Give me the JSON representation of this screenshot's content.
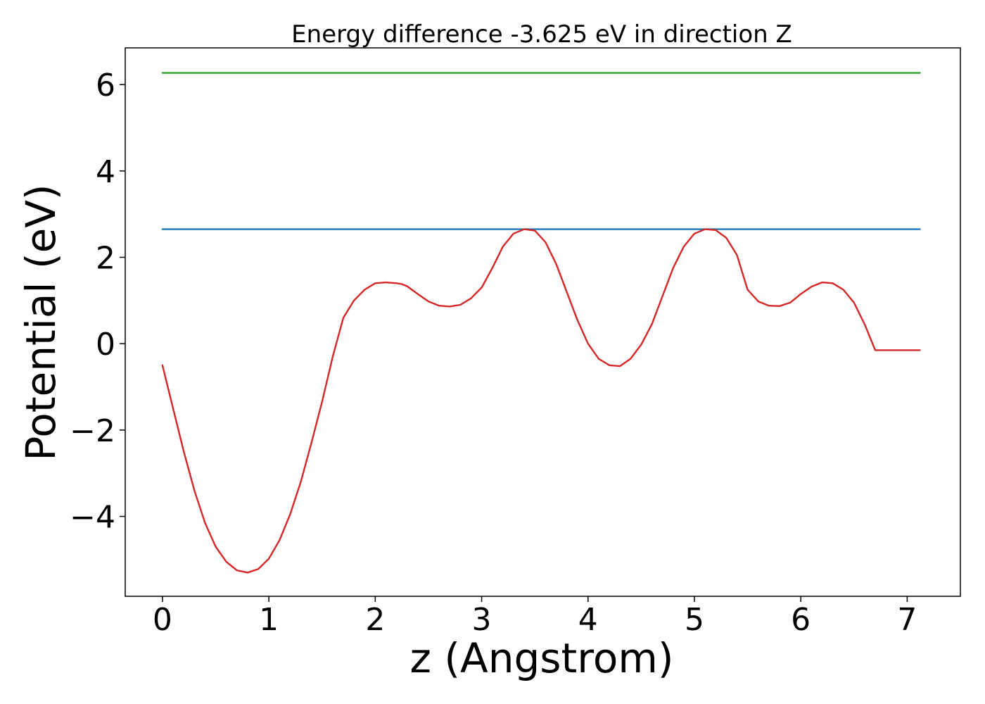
{
  "chart_data": {
    "type": "line",
    "title": "Energy difference -3.625 eV in direction Z",
    "xlabel": "z (Angstrom)",
    "ylabel": "Potential (eV)",
    "xlim": [
      -0.35,
      7.5
    ],
    "ylim": [
      -5.85,
      6.85
    ],
    "xticks": [
      0,
      1,
      2,
      3,
      4,
      5,
      6,
      7
    ],
    "xtick_labels": [
      "0",
      "1",
      "2",
      "3",
      "4",
      "5",
      "6",
      "7"
    ],
    "yticks": [
      -4,
      -2,
      0,
      2,
      4,
      6
    ],
    "ytick_labels": [
      "−4",
      "−2",
      "0",
      "2",
      "4",
      "6"
    ],
    "grid": false,
    "series": [
      {
        "color": "#2ca02c",
        "x": [
          0,
          7.12
        ],
        "y": [
          6.27,
          6.27
        ]
      },
      {
        "color": "#1f77b4",
        "x": [
          0,
          7.12
        ],
        "y": [
          2.65,
          2.65
        ]
      },
      {
        "color": "#d62728",
        "x": [
          0,
          0.1,
          0.2,
          0.3,
          0.4,
          0.5,
          0.6,
          0.7,
          0.8,
          0.9,
          1.0,
          1.1,
          1.2,
          1.3,
          1.4,
          1.5,
          1.6,
          1.7,
          1.8,
          1.9,
          2.0,
          2.1,
          2.2,
          2.25,
          2.3,
          2.4,
          2.5,
          2.6,
          2.7,
          2.8,
          2.9,
          3.0,
          3.1,
          3.2,
          3.3,
          3.4,
          3.5,
          3.6,
          3.7,
          3.8,
          3.9,
          4.0,
          4.1,
          4.2,
          4.3,
          4.4,
          4.5,
          4.6,
          4.7,
          4.8,
          4.9,
          5.0,
          5.1,
          5.2,
          5.3,
          5.4,
          5.45,
          5.5,
          5.6,
          5.7,
          5.8,
          5.9,
          6.0,
          6.1,
          6.2,
          6.3,
          6.4,
          6.5,
          6.6,
          6.7,
          6.8,
          6.9,
          7.0,
          7.1,
          7.12
        ],
        "y": [
          -0.5,
          -1.5,
          -2.5,
          -3.4,
          -4.15,
          -4.7,
          -5.05,
          -5.25,
          -5.3,
          -5.22,
          -4.98,
          -4.55,
          -3.95,
          -3.2,
          -2.3,
          -1.35,
          -0.3,
          0.6,
          1.0,
          1.25,
          1.4,
          1.42,
          1.4,
          1.38,
          1.33,
          1.15,
          0.98,
          0.88,
          0.86,
          0.9,
          1.05,
          1.3,
          1.75,
          2.25,
          2.55,
          2.65,
          2.62,
          2.35,
          1.85,
          1.2,
          0.55,
          0.0,
          -0.35,
          -0.5,
          -0.52,
          -0.35,
          -0.02,
          0.45,
          1.1,
          1.75,
          2.25,
          2.55,
          2.65,
          2.63,
          2.45,
          2.05,
          1.65,
          1.25,
          0.98,
          0.88,
          0.87,
          0.95,
          1.15,
          1.32,
          1.42,
          1.4,
          1.25,
          0.95,
          0.45,
          -0.15,
          -0.15,
          -0.15,
          -0.15,
          -0.15,
          -0.15
        ]
      }
    ]
  }
}
